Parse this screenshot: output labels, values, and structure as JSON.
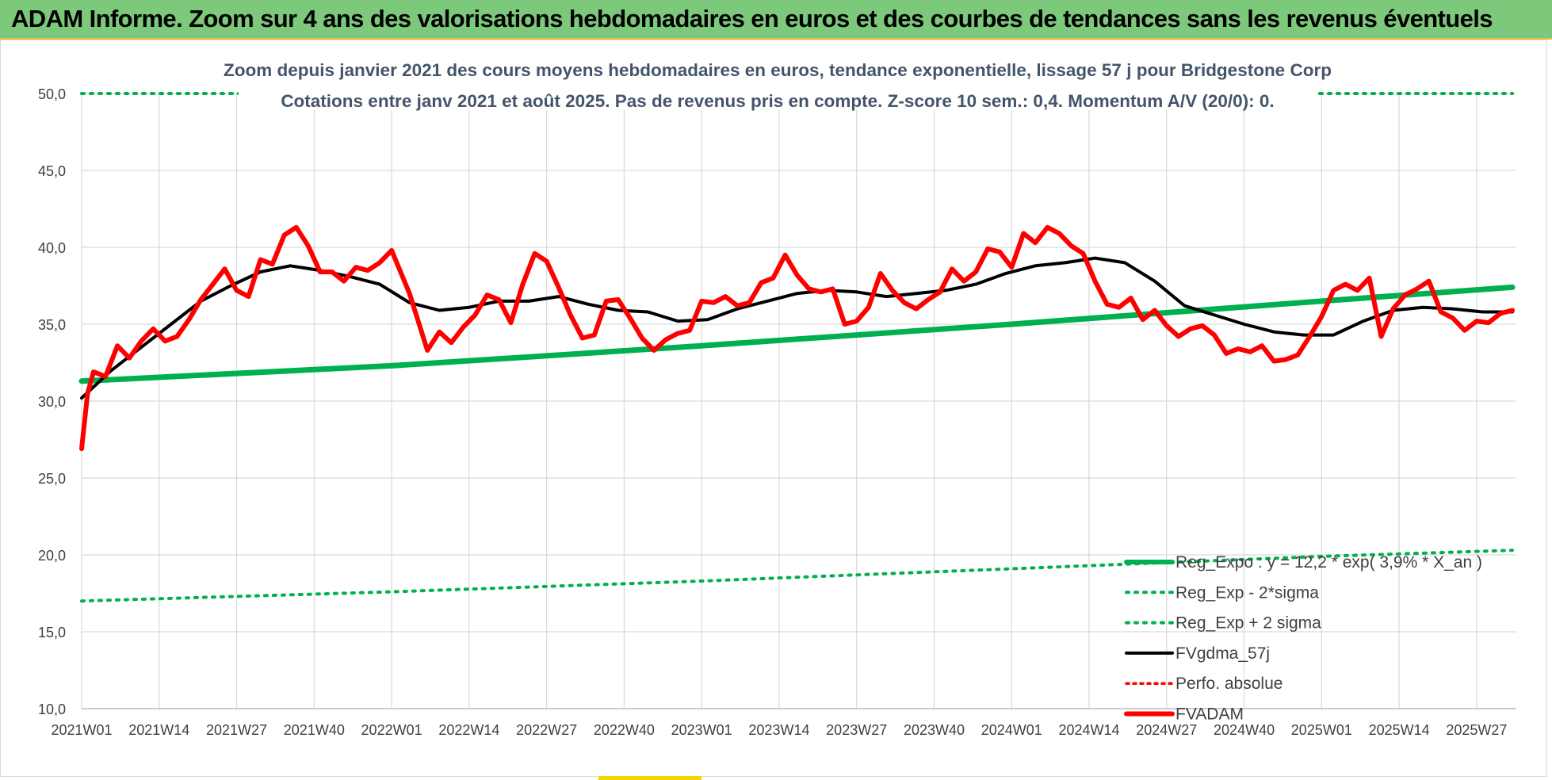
{
  "header": {
    "title": "ADAM Informe. Zoom sur 4 ans des valorisations hebdomadaires en euros et des courbes de tendances sans les revenus éventuels"
  },
  "colors": {
    "banner_bg": "#7dc97b",
    "expo_green": "#00b050",
    "sigma_green": "#00b050",
    "ma_black": "#000000",
    "price_red": "#ff0000",
    "title_text": "#44546a",
    "axis_text": "#404040",
    "grid": "#d9d9d9"
  },
  "chart_data": {
    "type": "line",
    "title": "Zoom depuis janvier 2021 des cours moyens hebdomadaires en euros, tendance exponentielle, lissage 57 j pour Bridgestone Corp",
    "subtitle": "Cotations entre janv 2021 et août 2025.  Pas de revenus pris en compte. Z-score 10 sem.: 0,4. Momentum A/V (20/0): 0.",
    "ylim": [
      10,
      50
    ],
    "y_ticks": [
      "10,0",
      "15,0",
      "20,0",
      "25,0",
      "30,0",
      "35,0",
      "40,0",
      "45,0",
      "50,0"
    ],
    "grid": true,
    "legend_position": "bottom-right",
    "x_ticks": [
      "2021W01",
      "2021W14",
      "2021W27",
      "2021W40",
      "2022W01",
      "2022W14",
      "2022W27",
      "2022W40",
      "2023W01",
      "2023W14",
      "2023W27",
      "2023W40",
      "2024W01",
      "2024W14",
      "2024W27",
      "2024W40",
      "2025W01",
      "2025W14",
      "2025W27"
    ],
    "series": [
      {
        "name": "Reg_Expo : y = 12,2 * exp( 3,9% *  X_an )",
        "style": "solid-thick",
        "x_week_index": [
          0,
          52,
          104,
          156,
          208,
          240
        ],
        "values": [
          31.3,
          32.3,
          33.6,
          35.0,
          36.5,
          37.4
        ]
      },
      {
        "name": "Reg_Exp - 2*sigma",
        "style": "dotted",
        "x_week_index": [
          0,
          52,
          104,
          156,
          208,
          240
        ],
        "values": [
          17.0,
          17.6,
          18.3,
          19.1,
          19.9,
          20.3
        ]
      },
      {
        "name": "Reg_Exp + 2 sigma",
        "style": "dotted",
        "x_week_index": [
          0,
          24,
          208,
          240
        ],
        "values": [
          50.0,
          50.0,
          50.0,
          50.0
        ],
        "note": "clipped at top of axis"
      },
      {
        "name": "FVgdma_57j",
        "style": "solid",
        "x_week_index": [
          0,
          5,
          10,
          15,
          20,
          25,
          30,
          35,
          40,
          45,
          50,
          55,
          60,
          65,
          70,
          75,
          80,
          85,
          90,
          95,
          100,
          105,
          110,
          115,
          120,
          125,
          130,
          135,
          140,
          145,
          150,
          155,
          160,
          165,
          170,
          175,
          180,
          185,
          190,
          195,
          200,
          205,
          210,
          215,
          220,
          225,
          230,
          235,
          240
        ],
        "values": [
          30.2,
          32.0,
          33.5,
          35.0,
          36.5,
          37.5,
          38.4,
          38.8,
          38.5,
          38.1,
          37.6,
          36.4,
          35.9,
          36.1,
          36.5,
          36.5,
          36.8,
          36.3,
          35.9,
          35.8,
          35.2,
          35.3,
          36.0,
          36.5,
          37.0,
          37.2,
          37.1,
          36.8,
          37.0,
          37.2,
          37.6,
          38.3,
          38.8,
          39.0,
          39.3,
          39.0,
          37.8,
          36.2,
          35.6,
          35.0,
          34.5,
          34.3,
          34.3,
          35.2,
          35.9,
          36.1,
          36.0,
          35.8,
          35.8
        ]
      },
      {
        "name": "Perfo. absolue",
        "style": "dotted-red",
        "x_week_index": [],
        "values": []
      },
      {
        "name": "FVADAM",
        "style": "solid-thick",
        "x_week_index": [
          0,
          1,
          2,
          4,
          6,
          8,
          10,
          12,
          14,
          16,
          18,
          20,
          22,
          24,
          26,
          28,
          30,
          32,
          34,
          36,
          38,
          40,
          42,
          44,
          46,
          48,
          50,
          52,
          55,
          58,
          60,
          62,
          64,
          66,
          68,
          70,
          72,
          74,
          76,
          78,
          80,
          82,
          84,
          86,
          88,
          90,
          92,
          94,
          96,
          98,
          100,
          102,
          104,
          106,
          108,
          110,
          112,
          114,
          116,
          118,
          120,
          122,
          124,
          126,
          128,
          130,
          132,
          134,
          136,
          138,
          140,
          142,
          144,
          146,
          148,
          150,
          152,
          154,
          156,
          158,
          160,
          162,
          164,
          166,
          168,
          170,
          172,
          174,
          176,
          178,
          180,
          182,
          184,
          186,
          188,
          190,
          192,
          194,
          196,
          198,
          200,
          202,
          204,
          206,
          208,
          210,
          212,
          214,
          216,
          218,
          220,
          222,
          224,
          226,
          228,
          230,
          232,
          234,
          236,
          238,
          240
        ],
        "values": [
          26.9,
          30.5,
          31.9,
          31.6,
          33.6,
          32.8,
          33.9,
          34.7,
          33.9,
          34.2,
          35.3,
          36.6,
          37.6,
          38.6,
          37.2,
          36.8,
          39.2,
          38.9,
          40.8,
          41.3,
          40.1,
          38.4,
          38.4,
          37.8,
          38.7,
          38.5,
          39.0,
          39.8,
          37.0,
          33.3,
          34.5,
          33.8,
          34.8,
          35.6,
          36.9,
          36.6,
          35.1,
          37.6,
          39.6,
          39.1,
          37.4,
          35.6,
          34.1,
          34.3,
          36.5,
          36.6,
          35.4,
          34.1,
          33.3,
          34.0,
          34.4,
          34.6,
          36.5,
          36.4,
          36.8,
          36.2,
          36.4,
          37.7,
          38.0,
          39.5,
          38.2,
          37.3,
          37.1,
          37.3,
          35.0,
          35.2,
          36.1,
          38.3,
          37.2,
          36.4,
          36.0,
          36.6,
          37.1,
          38.6,
          37.8,
          38.4,
          39.9,
          39.7,
          38.7,
          40.9,
          40.3,
          41.3,
          40.9,
          40.1,
          39.6,
          37.8,
          36.3,
          36.1,
          36.7,
          35.3,
          35.9,
          34.9,
          34.2,
          34.7,
          34.9,
          34.3,
          33.1,
          33.4,
          33.2,
          33.6,
          32.6,
          32.7,
          33.0,
          34.2,
          35.5,
          37.2,
          37.6,
          37.2,
          38.0,
          34.2,
          36.0,
          36.9,
          37.3,
          37.8,
          35.8,
          35.4,
          34.6,
          35.2,
          35.1,
          35.7,
          35.9
        ]
      }
    ]
  }
}
